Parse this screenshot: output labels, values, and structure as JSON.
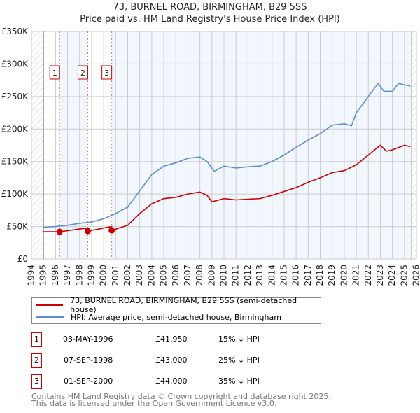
{
  "title": "73, BURNEL ROAD, BIRMINGHAM, B29 5SS",
  "subtitle": "Price paid vs. HM Land Registry's House Price Index (HPI)",
  "chart_data": {
    "type": "line",
    "xlim": [
      1994,
      2026
    ],
    "ylim": [
      0,
      350000
    ],
    "x_ticks": [
      "1994",
      "1995",
      "1996",
      "1997",
      "1998",
      "1999",
      "2000",
      "2001",
      "2002",
      "2003",
      "2004",
      "2005",
      "2006",
      "2007",
      "2008",
      "2009",
      "2010",
      "2011",
      "2012",
      "2013",
      "2014",
      "2015",
      "2016",
      "2017",
      "2018",
      "2019",
      "2020",
      "2021",
      "2022",
      "2023",
      "2024",
      "2025",
      "2026"
    ],
    "y_ticks": [
      {
        "v": 0,
        "label": "£0"
      },
      {
        "v": 50000,
        "label": "£50K"
      },
      {
        "v": 100000,
        "label": "£100K"
      },
      {
        "v": 150000,
        "label": "£150K"
      },
      {
        "v": 200000,
        "label": "£200K"
      },
      {
        "v": 250000,
        "label": "£250K"
      },
      {
        "v": 300000,
        "label": "£300K"
      },
      {
        "v": 350000,
        "label": "£350K"
      }
    ],
    "grid": true,
    "data_range": [
      1995,
      2025.6
    ],
    "series": [
      {
        "name": "73, BURNEL ROAD, BIRMINGHAM, B29 5SS (semi-detached house)",
        "color": "#cc0000",
        "x": [
          1995,
          1996.34,
          1998.68,
          1998.69,
          2000.67,
          2000.68,
          2002,
          2003,
          2004,
          2005,
          2006,
          2007,
          2008,
          2008.6,
          2009,
          2010,
          2011,
          2012,
          2013,
          2014,
          2015,
          2016,
          2017,
          2018,
          2019,
          2020,
          2021,
          2022,
          2023,
          2023.5,
          2024,
          2025,
          2025.5
        ],
        "y": [
          42000,
          41950,
          48000,
          43000,
          50000,
          44000,
          52000,
          70000,
          85000,
          93000,
          95000,
          100000,
          103000,
          98000,
          88000,
          93000,
          91000,
          92000,
          93000,
          98000,
          104000,
          110000,
          118000,
          125000,
          133000,
          136000,
          145000,
          160000,
          175000,
          166000,
          168000,
          175000,
          173000
        ]
      },
      {
        "name": "HPI: Average price, semi-detached house, Birmingham",
        "color": "#5b8fd4",
        "x": [
          1995,
          1996,
          1997,
          1998,
          1999,
          2000,
          2001,
          2002,
          2003,
          2004,
          2005,
          2006,
          2007,
          2008,
          2008.6,
          2009.2,
          2010,
          2011,
          2012,
          2013,
          2014,
          2015,
          2016,
          2017,
          2018,
          2019,
          2020,
          2020.6,
          2021,
          2022,
          2022.8,
          2023.3,
          2024,
          2024.5,
          2025,
          2025.5
        ],
        "y": [
          49000,
          50000,
          52000,
          55000,
          57000,
          62000,
          70000,
          80000,
          105000,
          130000,
          143000,
          148000,
          155000,
          157000,
          150000,
          135000,
          143000,
          140000,
          142000,
          143000,
          150000,
          160000,
          172000,
          183000,
          193000,
          206000,
          208000,
          205000,
          225000,
          250000,
          270000,
          258000,
          258000,
          270000,
          268000,
          266000
        ]
      }
    ],
    "sales": [
      {
        "label": "1",
        "x": 1996.34,
        "y": 41950
      },
      {
        "label": "2",
        "x": 1998.68,
        "y": 43000
      },
      {
        "label": "3",
        "x": 2000.67,
        "y": 44000
      }
    ]
  },
  "legend": {
    "items": [
      "73, BURNEL ROAD, BIRMINGHAM, B29 5SS (semi-detached house)",
      "HPI: Average price, semi-detached house, Birmingham"
    ]
  },
  "transactions": [
    {
      "num": "1",
      "date": "03-MAY-1996",
      "price": "£41,950",
      "hpi": "15% ↓ HPI"
    },
    {
      "num": "2",
      "date": "07-SEP-1998",
      "price": "£43,000",
      "hpi": "25% ↓ HPI"
    },
    {
      "num": "3",
      "date": "01-SEP-2000",
      "price": "£44,000",
      "hpi": "35% ↓ HPI"
    }
  ],
  "footer": [
    "Contains HM Land Registry data © Crown copyright and database right 2025.",
    "This data is licensed under the Open Government Licence v3.0."
  ]
}
